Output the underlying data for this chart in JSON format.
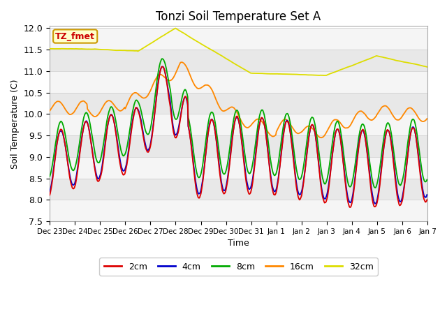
{
  "title": "Tonzi Soil Temperature Set A",
  "xlabel": "Time",
  "ylabel": "Soil Temperature (C)",
  "ylim": [
    7.5,
    12.05
  ],
  "annotation_text": "TZ_fmet",
  "annotation_color": "#cc0000",
  "annotation_bg": "#ffffcc",
  "annotation_border": "#cc9900",
  "background_color": "#ffffff",
  "line_colors": {
    "2cm": "#dd0000",
    "4cm": "#0000cc",
    "8cm": "#00aa00",
    "16cm": "#ff8800",
    "32cm": "#dddd00"
  },
  "legend_labels": [
    "2cm",
    "4cm",
    "8cm",
    "16cm",
    "32cm"
  ],
  "xtick_labels": [
    "Dec 23",
    "Dec 24",
    "Dec 25",
    "Dec 26",
    "Dec 27",
    "Dec 28",
    "Dec 29",
    "Dec 30",
    "Dec 31",
    "Jan 1",
    "Jan 2",
    "Jan 3",
    "Jan 4",
    "Jan 5",
    "Jan 6",
    "Jan 7"
  ],
  "stripe_colors": [
    "#f0f0f0",
    "#e0e0e0"
  ],
  "stripe_edges": [
    7.5,
    8.0,
    8.5,
    9.0,
    9.5,
    10.0,
    10.5,
    11.0,
    11.5,
    12.0
  ]
}
